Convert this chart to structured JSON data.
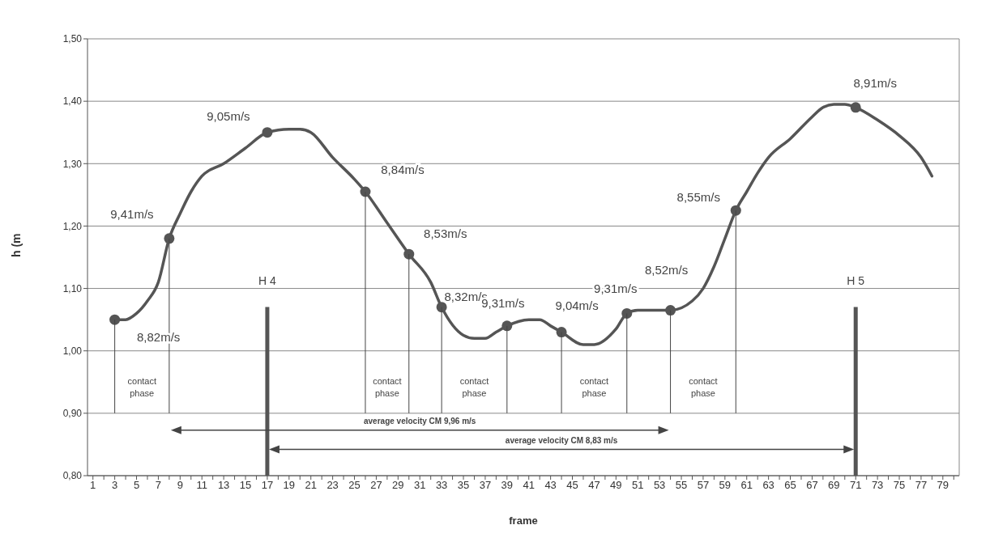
{
  "chart_data": {
    "type": "line",
    "xlabel": "frame",
    "ylabel": "h (m",
    "xlim": [
      0.5,
      80.5
    ],
    "xticks": [
      {
        "value": 1,
        "label": "1"
      },
      {
        "value": 2,
        "label": null
      },
      {
        "value": 3,
        "label": "3"
      },
      {
        "value": 4,
        "label": null
      },
      {
        "value": 5,
        "label": "5"
      },
      {
        "value": 6,
        "label": null
      },
      {
        "value": 7,
        "label": "7"
      },
      {
        "value": 8,
        "label": null
      },
      {
        "value": 9,
        "label": "9"
      },
      {
        "value": 10,
        "label": null
      },
      {
        "value": 11,
        "label": "11"
      },
      {
        "value": 12,
        "label": null
      },
      {
        "value": 13,
        "label": "13"
      },
      {
        "value": 14,
        "label": null
      },
      {
        "value": 15,
        "label": "15"
      },
      {
        "value": 16,
        "label": null
      },
      {
        "value": 17,
        "label": "17"
      },
      {
        "value": 18,
        "label": null
      },
      {
        "value": 19,
        "label": "19"
      },
      {
        "value": 20,
        "label": null
      },
      {
        "value": 21,
        "label": "21"
      },
      {
        "value": 22,
        "label": null
      },
      {
        "value": 23,
        "label": "23"
      },
      {
        "value": 24,
        "label": null
      },
      {
        "value": 25,
        "label": "25"
      },
      {
        "value": 26,
        "label": null
      },
      {
        "value": 27,
        "label": "27"
      },
      {
        "value": 28,
        "label": null
      },
      {
        "value": 29,
        "label": "29"
      },
      {
        "value": 30,
        "label": null
      },
      {
        "value": 31,
        "label": "31"
      },
      {
        "value": 32,
        "label": null
      },
      {
        "value": 33,
        "label": "33"
      },
      {
        "value": 34,
        "label": null
      },
      {
        "value": 35,
        "label": "35"
      },
      {
        "value": 36,
        "label": null
      },
      {
        "value": 37,
        "label": "37"
      },
      {
        "value": 38,
        "label": null
      },
      {
        "value": 39,
        "label": "39"
      },
      {
        "value": 40,
        "label": null
      },
      {
        "value": 41,
        "label": "41"
      },
      {
        "value": 42,
        "label": null
      },
      {
        "value": 43,
        "label": "43"
      },
      {
        "value": 44,
        "label": null
      },
      {
        "value": 45,
        "label": "45"
      },
      {
        "value": 46,
        "label": null
      },
      {
        "value": 47,
        "label": "47"
      },
      {
        "value": 48,
        "label": null
      },
      {
        "value": 49,
        "label": "49"
      },
      {
        "value": 50,
        "label": null
      },
      {
        "value": 51,
        "label": "51"
      },
      {
        "value": 52,
        "label": null
      },
      {
        "value": 53,
        "label": "53"
      },
      {
        "value": 54,
        "label": null
      },
      {
        "value": 55,
        "label": "55"
      },
      {
        "value": 56,
        "label": null
      },
      {
        "value": 57,
        "label": "57"
      },
      {
        "value": 58,
        "label": null
      },
      {
        "value": 59,
        "label": "59"
      },
      {
        "value": 60,
        "label": null
      },
      {
        "value": 61,
        "label": "61"
      },
      {
        "value": 62,
        "label": null
      },
      {
        "value": 63,
        "label": "63"
      },
      {
        "value": 64,
        "label": null
      },
      {
        "value": 65,
        "label": "65"
      },
      {
        "value": 66,
        "label": null
      },
      {
        "value": 67,
        "label": "67"
      },
      {
        "value": 68,
        "label": null
      },
      {
        "value": 69,
        "label": "69"
      },
      {
        "value": 70,
        "label": null
      },
      {
        "value": 71,
        "label": "71"
      },
      {
        "value": 72,
        "label": null
      },
      {
        "value": 73,
        "label": "73"
      },
      {
        "value": 74,
        "label": null
      },
      {
        "value": 75,
        "label": "75"
      },
      {
        "value": 76,
        "label": null
      },
      {
        "value": 77,
        "label": "77"
      },
      {
        "value": 78,
        "label": null
      },
      {
        "value": 79,
        "label": "79"
      },
      {
        "value": 80,
        "label": null
      }
    ],
    "ylim": [
      0.8,
      1.5
    ],
    "yticks": [
      {
        "value": 0.8,
        "label": "0,80"
      },
      {
        "value": 0.9,
        "label": "0,90"
      },
      {
        "value": 1.0,
        "label": "1,00"
      },
      {
        "value": 1.1,
        "label": "1,10"
      },
      {
        "value": 1.2,
        "label": "1,20"
      },
      {
        "value": 1.3,
        "label": "1,30"
      },
      {
        "value": 1.4,
        "label": "1,40"
      },
      {
        "value": 1.5,
        "label": "1,50"
      }
    ],
    "grid": "y",
    "line_style": "solid",
    "series": [
      {
        "color": "#555555",
        "x": [
          3,
          4,
          5,
          6,
          7,
          8,
          9,
          10,
          11,
          13,
          15,
          17,
          19,
          20,
          21,
          23,
          25,
          26,
          28,
          30,
          32,
          33,
          35,
          36,
          37,
          38,
          39,
          41,
          42,
          43,
          44,
          46,
          47,
          49,
          50,
          51,
          53,
          54,
          56,
          57,
          58,
          59,
          60,
          61,
          62,
          63,
          65,
          67,
          68,
          69,
          70,
          71,
          73,
          75,
          77,
          78
        ],
        "values": [
          1.05,
          1.05,
          1.06,
          1.08,
          1.11,
          1.18,
          1.22,
          1.255,
          1.28,
          1.3,
          1.325,
          1.35,
          1.355,
          1.355,
          1.35,
          1.31,
          1.275,
          1.255,
          1.205,
          1.155,
          1.11,
          1.07,
          1.025,
          1.02,
          1.02,
          1.03,
          1.04,
          1.05,
          1.05,
          1.04,
          1.03,
          1.01,
          1.01,
          1.035,
          1.06,
          1.065,
          1.065,
          1.065,
          1.08,
          1.1,
          1.135,
          1.18,
          1.225,
          1.255,
          1.285,
          1.31,
          1.34,
          1.375,
          1.39,
          1.395,
          1.395,
          1.39,
          1.37,
          1.345,
          1.31,
          1.28
        ]
      },
      {
        "type": "scatter",
        "color": "#555555",
        "marker": "circle",
        "x": [
          3,
          8,
          17,
          26,
          30,
          33,
          39,
          44,
          50,
          54,
          60,
          71
        ],
        "values": [
          1.05,
          1.18,
          1.35,
          1.255,
          1.155,
          1.07,
          1.04,
          1.03,
          1.06,
          1.065,
          1.225,
          1.39
        ]
      }
    ],
    "ref_lines": [
      {
        "axis": "x",
        "value": 17,
        "label": "H 4",
        "color": "#555555"
      },
      {
        "axis": "x",
        "value": 71,
        "label": "H 5",
        "color": "#555555"
      },
      {
        "axis": "x",
        "value": 3
      },
      {
        "axis": "x",
        "value": 8
      },
      {
        "axis": "x",
        "value": 26
      },
      {
        "axis": "x",
        "value": 30
      },
      {
        "axis": "x",
        "value": 33
      },
      {
        "axis": "x",
        "value": 39
      },
      {
        "axis": "x",
        "value": 44
      },
      {
        "axis": "x",
        "value": 50
      },
      {
        "axis": "x",
        "value": 54
      },
      {
        "axis": "x",
        "value": 60
      }
    ],
    "annotations": [
      {
        "text": "8,82m/s",
        "x": 3,
        "y": 1.05
      },
      {
        "text": "9,41m/s",
        "x": 8,
        "y": 1.18
      },
      {
        "text": "9,05m/s",
        "x": 17,
        "y": 1.35
      },
      {
        "text": "8,84m/s",
        "x": 26,
        "y": 1.255
      },
      {
        "text": "8,53m/s",
        "x": 30,
        "y": 1.155
      },
      {
        "text": "8,32m/s",
        "x": 33,
        "y": 1.07
      },
      {
        "text": "9,31m/s",
        "x": 39,
        "y": 1.04
      },
      {
        "text": "9,04m/s",
        "x": 44,
        "y": 1.03
      },
      {
        "text": "9,31m/s",
        "x": 50,
        "y": 1.06
      },
      {
        "text": "8,52m/s",
        "x": 54,
        "y": 1.065
      },
      {
        "text": "8,55m/s",
        "x": 60,
        "y": 1.225
      },
      {
        "text": "8,91m/s",
        "x": 71,
        "y": 1.39
      },
      "contact phase",
      "contact phase",
      "contact phase",
      "contact phase",
      "contact phase",
      "average velocity CM 9,96 m/s",
      "average velocity CM 8,83 m/s"
    ]
  }
}
